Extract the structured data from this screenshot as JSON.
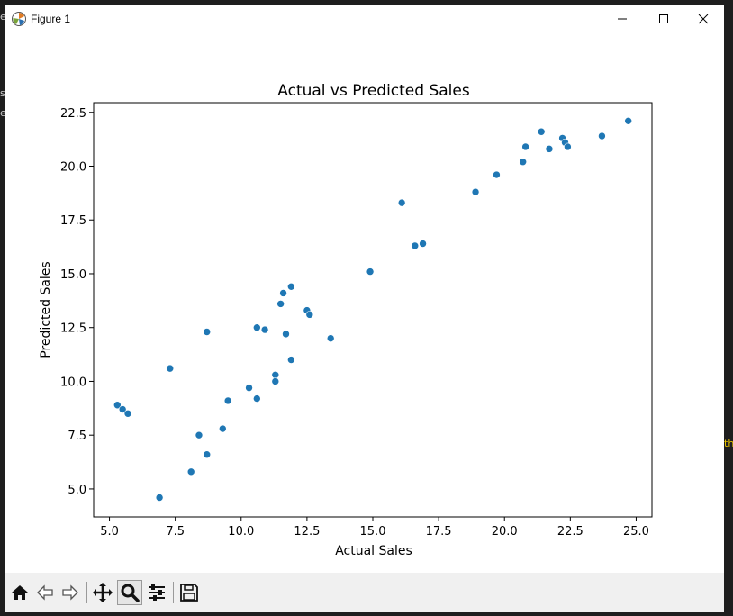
{
  "window": {
    "title": "Figure 1"
  },
  "background_fragments": {
    "left_top": "e",
    "left_mid1": "s",
    "left_mid2": "e",
    "right_mid": "th"
  },
  "toolbar": {
    "buttons": [
      {
        "name": "home-icon",
        "active": false
      },
      {
        "name": "back-icon",
        "active": false
      },
      {
        "name": "forward-icon",
        "active": false
      },
      {
        "name": "pan-icon",
        "active": false
      },
      {
        "name": "zoom-icon",
        "active": true
      },
      {
        "name": "configure-subplots-icon",
        "active": false
      },
      {
        "name": "save-icon",
        "active": false
      }
    ]
  },
  "chart_data": {
    "type": "scatter",
    "title": "Actual vs Predicted Sales",
    "xlabel": "Actual Sales",
    "ylabel": "Predicted Sales",
    "xlim": [
      4.4,
      25.6
    ],
    "ylim": [
      3.7,
      22.95
    ],
    "xticks": [
      5.0,
      7.5,
      10.0,
      12.5,
      15.0,
      17.5,
      20.0,
      22.5,
      25.0
    ],
    "xtick_labels": [
      "5.0",
      "7.5",
      "10.0",
      "12.5",
      "15.0",
      "17.5",
      "20.0",
      "22.5",
      "25.0"
    ],
    "yticks": [
      5.0,
      7.5,
      10.0,
      12.5,
      15.0,
      17.5,
      20.0,
      22.5
    ],
    "ytick_labels": [
      "5.0",
      "7.5",
      "10.0",
      "12.5",
      "15.0",
      "17.5",
      "20.0",
      "22.5"
    ],
    "color": "#1f77b4",
    "grid": false,
    "points": [
      {
        "x": 5.3,
        "y": 8.9
      },
      {
        "x": 5.5,
        "y": 8.7
      },
      {
        "x": 5.7,
        "y": 8.5
      },
      {
        "x": 6.9,
        "y": 4.6
      },
      {
        "x": 7.3,
        "y": 10.6
      },
      {
        "x": 8.1,
        "y": 5.8
      },
      {
        "x": 8.4,
        "y": 7.5
      },
      {
        "x": 8.7,
        "y": 6.6
      },
      {
        "x": 8.7,
        "y": 12.3
      },
      {
        "x": 9.3,
        "y": 7.8
      },
      {
        "x": 9.5,
        "y": 9.1
      },
      {
        "x": 10.3,
        "y": 9.7
      },
      {
        "x": 10.6,
        "y": 9.2
      },
      {
        "x": 10.6,
        "y": 12.5
      },
      {
        "x": 10.9,
        "y": 12.4
      },
      {
        "x": 11.3,
        "y": 10.3
      },
      {
        "x": 11.3,
        "y": 10.0
      },
      {
        "x": 11.5,
        "y": 13.6
      },
      {
        "x": 11.6,
        "y": 14.1
      },
      {
        "x": 11.7,
        "y": 12.2
      },
      {
        "x": 11.9,
        "y": 14.4
      },
      {
        "x": 11.9,
        "y": 11.0
      },
      {
        "x": 12.5,
        "y": 13.3
      },
      {
        "x": 12.6,
        "y": 13.1
      },
      {
        "x": 13.4,
        "y": 12.0
      },
      {
        "x": 14.9,
        "y": 15.1
      },
      {
        "x": 16.1,
        "y": 18.3
      },
      {
        "x": 16.6,
        "y": 16.3
      },
      {
        "x": 16.9,
        "y": 16.4
      },
      {
        "x": 18.9,
        "y": 18.8
      },
      {
        "x": 19.7,
        "y": 19.6
      },
      {
        "x": 20.7,
        "y": 20.2
      },
      {
        "x": 20.8,
        "y": 20.9
      },
      {
        "x": 21.4,
        "y": 21.6
      },
      {
        "x": 21.7,
        "y": 20.8
      },
      {
        "x": 22.2,
        "y": 21.3
      },
      {
        "x": 22.3,
        "y": 21.1
      },
      {
        "x": 22.4,
        "y": 20.9
      },
      {
        "x": 23.7,
        "y": 21.4
      },
      {
        "x": 24.7,
        "y": 22.1
      }
    ]
  }
}
